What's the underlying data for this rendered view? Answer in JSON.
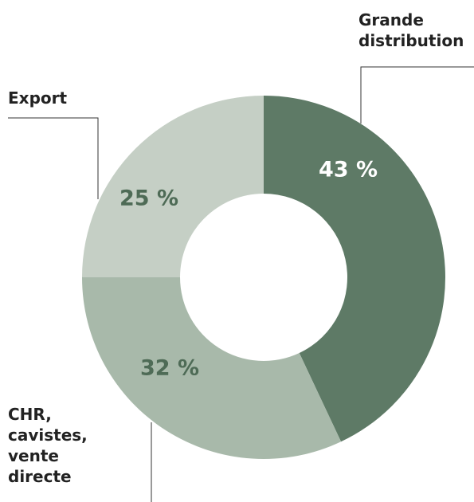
{
  "chart_data": {
    "type": "donut",
    "categories": [
      "Grande distribution",
      "CHR, cavistes, vente directe",
      "Export"
    ],
    "values": [
      43,
      32,
      25
    ],
    "value_labels": [
      "43 %",
      "32 %",
      "25 %"
    ],
    "colors": [
      "#5e7a66",
      "#a8b9aa",
      "#c5cfc5"
    ],
    "label_colors": [
      "#ffffff",
      "#4e6b56",
      "#4e6b56"
    ]
  }
}
